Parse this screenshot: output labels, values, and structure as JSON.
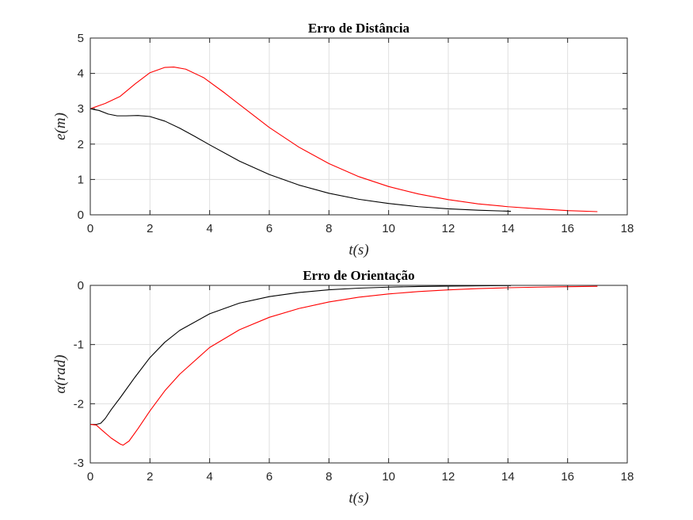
{
  "chart_data": [
    {
      "type": "line",
      "title": "Erro de Distância",
      "xlabel": "t(s)",
      "ylabel": "e(m)",
      "xlim": [
        0,
        18
      ],
      "ylim": [
        0,
        5
      ],
      "xticks": [
        0,
        2,
        4,
        6,
        8,
        10,
        12,
        14,
        16,
        18
      ],
      "yticks": [
        0,
        1,
        2,
        3,
        4,
        5
      ],
      "grid": true,
      "series": [
        {
          "color": "#000000",
          "x": [
            0,
            0.3,
            0.6,
            0.9,
            1.2,
            1.6,
            2.0,
            2.5,
            3.0,
            3.5,
            4.0,
            5.0,
            6.0,
            7.0,
            8.0,
            9.0,
            10.0,
            11.0,
            12.0,
            13.0,
            14.1
          ],
          "y": [
            3.0,
            2.95,
            2.85,
            2.8,
            2.8,
            2.81,
            2.78,
            2.65,
            2.45,
            2.22,
            1.98,
            1.52,
            1.14,
            0.84,
            0.61,
            0.44,
            0.32,
            0.23,
            0.17,
            0.13,
            0.1
          ]
        },
        {
          "color": "#ff0000",
          "x": [
            0,
            0.5,
            1.0,
            1.5,
            2.0,
            2.5,
            2.8,
            3.2,
            3.8,
            4.5,
            5.0,
            6.0,
            7.0,
            8.0,
            9.0,
            10.0,
            11.0,
            12.0,
            13.0,
            14.0,
            15.0,
            16.0,
            17.0
          ],
          "y": [
            3.0,
            3.15,
            3.35,
            3.7,
            4.02,
            4.17,
            4.18,
            4.12,
            3.88,
            3.45,
            3.12,
            2.47,
            1.91,
            1.45,
            1.08,
            0.8,
            0.59,
            0.43,
            0.31,
            0.23,
            0.17,
            0.12,
            0.09
          ]
        }
      ]
    },
    {
      "type": "line",
      "title": "Erro de Orientação",
      "xlabel": "t(s)",
      "ylabel": "α(rad)",
      "xlim": [
        0,
        18
      ],
      "ylim": [
        -3,
        0
      ],
      "xticks": [
        0,
        2,
        4,
        6,
        8,
        10,
        12,
        14,
        16,
        18
      ],
      "yticks": [
        -3,
        -2,
        -1,
        0
      ],
      "grid": true,
      "series": [
        {
          "color": "#000000",
          "x": [
            0,
            0.2,
            0.35,
            0.5,
            0.7,
            1.0,
            1.5,
            2.0,
            2.5,
            3.0,
            4.0,
            5.0,
            6.0,
            7.0,
            8.0,
            9.0,
            10.0,
            11.0,
            12.0,
            13.0,
            14.1
          ],
          "y": [
            -2.35,
            -2.35,
            -2.33,
            -2.25,
            -2.1,
            -1.9,
            -1.55,
            -1.22,
            -0.96,
            -0.76,
            -0.48,
            -0.3,
            -0.19,
            -0.12,
            -0.075,
            -0.047,
            -0.03,
            -0.019,
            -0.012,
            -0.007,
            -0.004
          ]
        },
        {
          "color": "#ff0000",
          "x": [
            0,
            0.2,
            0.4,
            0.7,
            1.0,
            1.1,
            1.3,
            1.6,
            2.0,
            2.5,
            3.0,
            4.0,
            5.0,
            6.0,
            7.0,
            8.0,
            9.0,
            10.0,
            11.0,
            12.0,
            13.0,
            14.0,
            15.0,
            16.0,
            17.0
          ],
          "y": [
            -2.35,
            -2.36,
            -2.45,
            -2.58,
            -2.68,
            -2.7,
            -2.63,
            -2.42,
            -2.12,
            -1.78,
            -1.5,
            -1.05,
            -0.75,
            -0.54,
            -0.39,
            -0.28,
            -0.2,
            -0.145,
            -0.105,
            -0.076,
            -0.055,
            -0.04,
            -0.03,
            -0.022,
            -0.016
          ]
        }
      ]
    }
  ]
}
